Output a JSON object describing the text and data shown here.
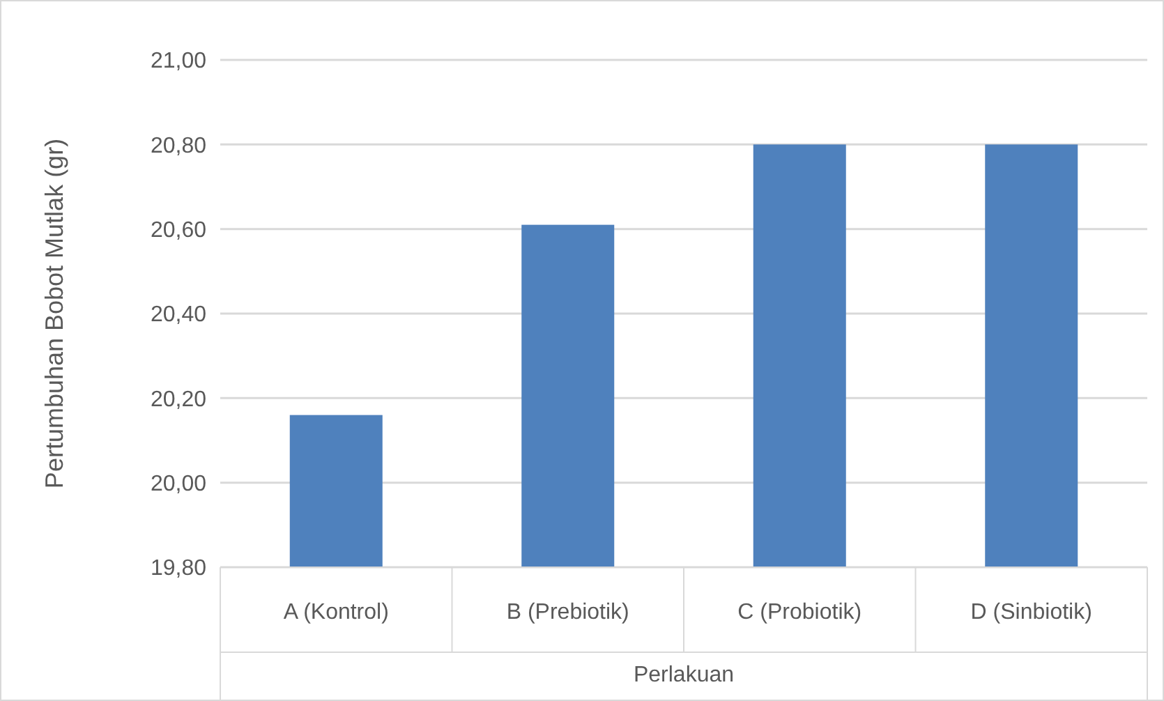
{
  "chart_data": {
    "type": "bar",
    "xlabel": "Perlakuan",
    "ylabel": "Pertumbuhan Bobot Mutlak (gr)",
    "categories": [
      "A (Kontrol)",
      "B (Prebiotik)",
      "C (Probiotik)",
      "D (Sinbiotik)"
    ],
    "values": [
      20.16,
      20.61,
      20.8,
      20.8
    ],
    "color": "#4f81bd",
    "ylim": [
      19.8,
      21.0
    ],
    "yticks": [
      {
        "value": 19.8,
        "label": "19,80"
      },
      {
        "value": 20.0,
        "label": "20,00"
      },
      {
        "value": 20.2,
        "label": "20,20"
      },
      {
        "value": 20.4,
        "label": "20,40"
      },
      {
        "value": 20.6,
        "label": "20,60"
      },
      {
        "value": 20.8,
        "label": "20,80"
      },
      {
        "value": 21.0,
        "label": "21,00"
      }
    ],
    "grid": "y"
  }
}
